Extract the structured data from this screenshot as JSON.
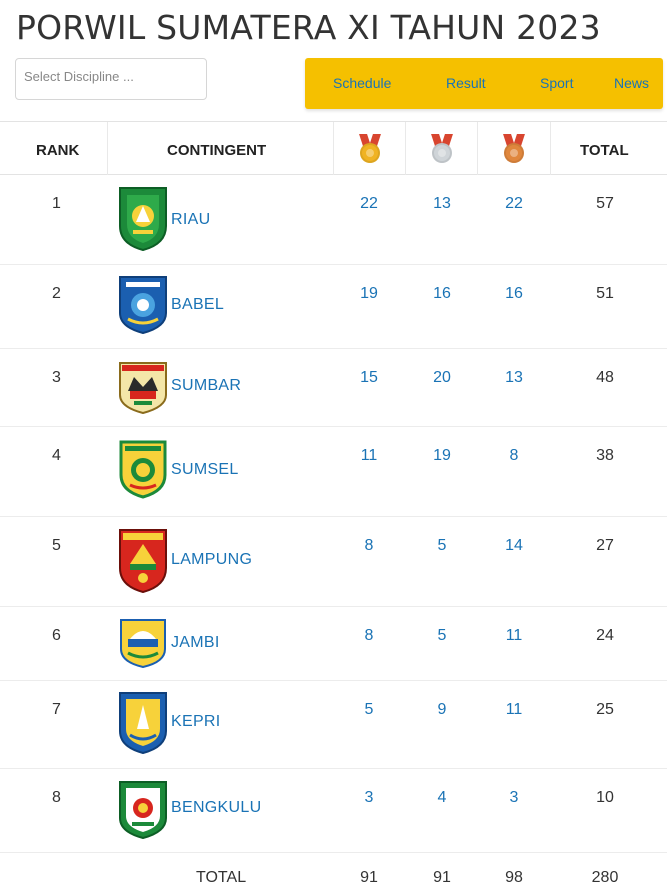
{
  "header": {
    "title": "PORWIL SUMATERA XI TAHUN 2023",
    "discipline_placeholder": "Select Discipline ..."
  },
  "nav": {
    "items": [
      "Schedule",
      "Result",
      "Sport",
      "News"
    ],
    "background": "#f5c000",
    "link_color": "#1a73b5"
  },
  "table": {
    "headers": {
      "rank": "RANK",
      "contingent": "CONTINGENT",
      "gold_icon": "gold-medal-icon",
      "silver_icon": "silver-medal-icon",
      "bronze_icon": "bronze-medal-icon",
      "total": "TOTAL"
    },
    "rows": [
      {
        "rank": "1",
        "name": "RIAU",
        "crest_icon": "riau-crest-icon",
        "gold": "22",
        "silver": "13",
        "bronze": "22",
        "total": "57"
      },
      {
        "rank": "2",
        "name": "BABEL",
        "crest_icon": "babel-crest-icon",
        "gold": "19",
        "silver": "16",
        "bronze": "16",
        "total": "51"
      },
      {
        "rank": "3",
        "name": "SUMBAR",
        "crest_icon": "sumbar-crest-icon",
        "gold": "15",
        "silver": "20",
        "bronze": "13",
        "total": "48"
      },
      {
        "rank": "4",
        "name": "SUMSEL",
        "crest_icon": "sumsel-crest-icon",
        "gold": "11",
        "silver": "19",
        "bronze": "8",
        "total": "38"
      },
      {
        "rank": "5",
        "name": "LAMPUNG",
        "crest_icon": "lampung-crest-icon",
        "gold": "8",
        "silver": "5",
        "bronze": "14",
        "total": "27"
      },
      {
        "rank": "6",
        "name": "JAMBI",
        "crest_icon": "jambi-crest-icon",
        "gold": "8",
        "silver": "5",
        "bronze": "11",
        "total": "24"
      },
      {
        "rank": "7",
        "name": "KEPRI",
        "crest_icon": "kepri-crest-icon",
        "gold": "5",
        "silver": "9",
        "bronze": "11",
        "total": "25"
      },
      {
        "rank": "8",
        "name": "BENGKULU",
        "crest_icon": "bengkulu-crest-icon",
        "gold": "3",
        "silver": "4",
        "bronze": "3",
        "total": "10"
      }
    ],
    "totals": {
      "label": "TOTAL",
      "gold": "91",
      "silver": "91",
      "bronze": "98",
      "total": "280"
    }
  }
}
